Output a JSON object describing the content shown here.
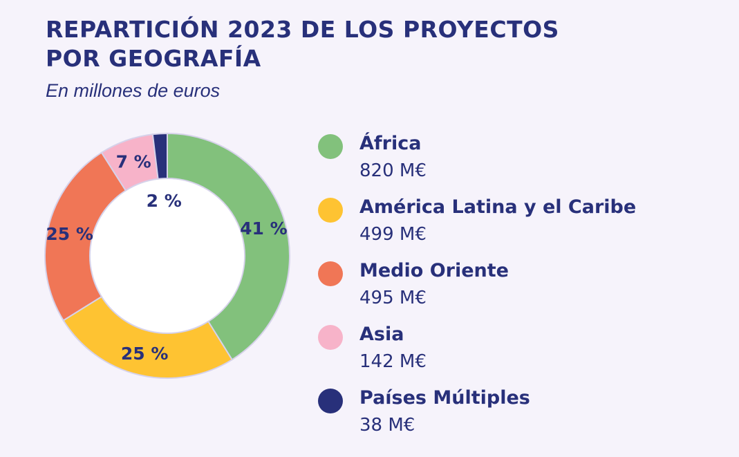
{
  "title_line1": "REPARTICIÓN 2023 DE LOS PROYECTOS",
  "title_line2": "POR GEOGRAFÍA",
  "subtitle": "En millones de euros",
  "chart_data": {
    "type": "pie",
    "variant": "donut",
    "unit": "M€",
    "categories": [
      "África",
      "América Latina y el Caribe",
      "Medio Oriente",
      "Asia",
      "Países Múltiples"
    ],
    "values": [
      820,
      499,
      495,
      142,
      38
    ],
    "value_labels": [
      "820 M€",
      "499 M€",
      "495 M€",
      "142 M€",
      "38 M€"
    ],
    "percent_labels": [
      "41 %",
      "25 %",
      "25 %",
      "7 %",
      "2 %"
    ],
    "colors": [
      "#82c17c",
      "#fec332",
      "#f07656",
      "#f7b3c9",
      "#28307a"
    ],
    "legend_position": "right"
  }
}
